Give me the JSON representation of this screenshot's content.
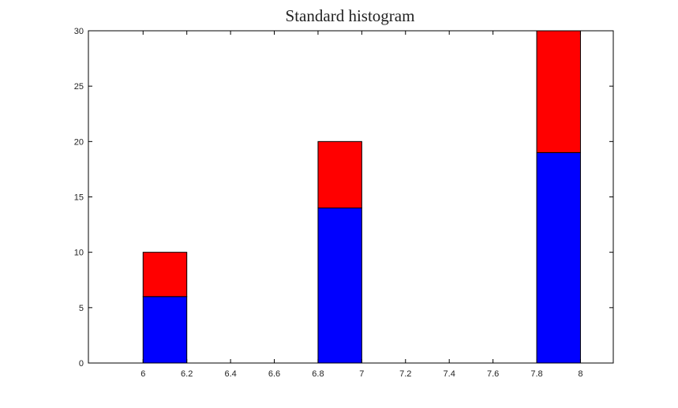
{
  "chart_data": {
    "type": "bar",
    "stacked": true,
    "title": "Standard histogram",
    "xlabel": "",
    "ylabel": "",
    "xlim": [
      5.75,
      8.15
    ],
    "ylim": [
      0,
      30
    ],
    "bar_width": 0.2,
    "x_ticks": [
      "6",
      "6.2",
      "6.4",
      "6.6",
      "6.8",
      "7",
      "7.2",
      "7.4",
      "7.6",
      "7.8",
      "8"
    ],
    "y_ticks": [
      "0",
      "5",
      "10",
      "15",
      "20",
      "25",
      "30"
    ],
    "grid": false,
    "legend": "none",
    "bars": [
      {
        "x_start": 6.0,
        "x_end": 6.2,
        "segments": [
          6,
          4
        ]
      },
      {
        "x_start": 6.8,
        "x_end": 7.0,
        "segments": [
          14,
          6
        ]
      },
      {
        "x_start": 7.8,
        "x_end": 8.0,
        "segments": [
          19,
          11
        ]
      }
    ],
    "series": [
      {
        "color": "#0000ff",
        "values": [
          6,
          14,
          19
        ]
      },
      {
        "color": "#ff0000",
        "values": [
          4,
          6,
          11
        ]
      }
    ]
  }
}
